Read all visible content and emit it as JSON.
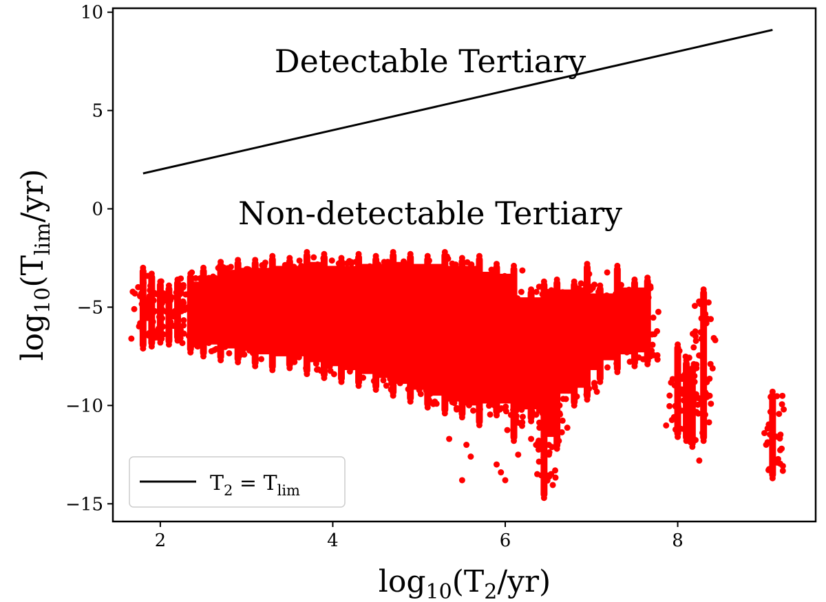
{
  "chart_data": {
    "type": "scatter",
    "title": "",
    "xlabel": "log10(T2/yr)",
    "ylabel": "log10(Tlim/yr)",
    "xlim": [
      1.45,
      9.6
    ],
    "ylim": [
      -15.9,
      10.2
    ],
    "x_ticks": [
      2,
      4,
      6,
      8
    ],
    "y_ticks": [
      10,
      5,
      0,
      -5,
      -10,
      -15
    ],
    "x_tick_labels": [
      "2",
      "4",
      "6",
      "8"
    ],
    "y_tick_labels": [
      "10",
      "5",
      "0",
      "−5",
      "−10",
      "−15"
    ],
    "annotations": [
      {
        "text": "Detectable Tertiary",
        "x": 5.1,
        "y": 7.6
      },
      {
        "text": "Non-detectable Tertiary",
        "x": 5.2,
        "y": -0.1
      }
    ],
    "legend": {
      "position": "lower-left",
      "entries": [
        {
          "label": "T2 = Tlim",
          "style": "line",
          "color": "#000000"
        }
      ]
    },
    "colors": {
      "line": "#000000",
      "points": "#ff0000"
    },
    "line_series": {
      "name": "T2 = Tlim",
      "x": [
        1.8,
        9.1
      ],
      "y": [
        1.8,
        9.1
      ]
    },
    "scatter_columns": [
      {
        "x": 1.8,
        "ymin": -7.1,
        "ymax": -3.0
      },
      {
        "x": 1.9,
        "ymin": -7.0,
        "ymax": -3.3
      },
      {
        "x": 2.0,
        "ymin": -6.8,
        "ymax": -3.7
      },
      {
        "x": 2.1,
        "ymin": -6.9,
        "ymax": -3.9
      },
      {
        "x": 2.2,
        "ymin": -6.7,
        "ymax": -3.6
      },
      {
        "x": 2.35,
        "ymin": -7.3,
        "ymax": -3.3
      },
      {
        "x": 2.5,
        "ymin": -7.5,
        "ymax": -3.0
      },
      {
        "x": 2.7,
        "ymin": -7.7,
        "ymax": -2.7
      },
      {
        "x": 2.9,
        "ymin": -7.8,
        "ymax": -2.6
      },
      {
        "x": 3.1,
        "ymin": -8.0,
        "ymax": -2.6
      },
      {
        "x": 3.3,
        "ymin": -8.2,
        "ymax": -2.4
      },
      {
        "x": 3.5,
        "ymin": -8.1,
        "ymax": -2.5
      },
      {
        "x": 3.7,
        "ymin": -8.4,
        "ymax": -2.2
      },
      {
        "x": 3.9,
        "ymin": -8.6,
        "ymax": -2.3
      },
      {
        "x": 4.1,
        "ymin": -8.8,
        "ymax": -2.5
      },
      {
        "x": 4.3,
        "ymin": -9.0,
        "ymax": -2.3
      },
      {
        "x": 4.5,
        "ymin": -9.2,
        "ymax": -2.4
      },
      {
        "x": 4.7,
        "ymin": -9.5,
        "ymax": -2.2
      },
      {
        "x": 4.9,
        "ymin": -9.8,
        "ymax": -2.3
      },
      {
        "x": 5.1,
        "ymin": -10.1,
        "ymax": -2.4
      },
      {
        "x": 5.3,
        "ymin": -10.4,
        "ymax": -2.2
      },
      {
        "x": 5.5,
        "ymin": -10.6,
        "ymax": -2.5
      },
      {
        "x": 5.7,
        "ymin": -11.0,
        "ymax": -2.4
      },
      {
        "x": 5.9,
        "ymin": -10.5,
        "ymax": -2.8
      },
      {
        "x": 6.1,
        "ymin": -11.8,
        "ymax": -2.9
      },
      {
        "x": 6.3,
        "ymin": -10.8,
        "ymax": -4.1
      },
      {
        "x": 6.45,
        "ymin": -14.7,
        "ymax": -3.7
      },
      {
        "x": 6.6,
        "ymin": -12.2,
        "ymax": -3.6
      },
      {
        "x": 6.8,
        "ymin": -10.0,
        "ymax": -3.7
      },
      {
        "x": 6.95,
        "ymin": -9.7,
        "ymax": -2.8
      },
      {
        "x": 7.1,
        "ymin": -8.8,
        "ymax": -3.9
      },
      {
        "x": 7.3,
        "ymin": -8.3,
        "ymax": -2.9
      },
      {
        "x": 7.5,
        "ymin": -8.0,
        "ymax": -3.6
      },
      {
        "x": 7.65,
        "ymin": -7.9,
        "ymax": -3.5
      },
      {
        "x": 8.0,
        "ymin": -11.6,
        "ymax": -6.9
      },
      {
        "x": 8.1,
        "ymin": -11.8,
        "ymax": -7.7
      },
      {
        "x": 8.17,
        "ymin": -12.1,
        "ymax": -8.1
      },
      {
        "x": 8.3,
        "ymin": -11.8,
        "ymax": -4.1
      },
      {
        "x": 9.1,
        "ymin": -13.7,
        "ymax": -9.3
      }
    ],
    "outlier_points": [
      {
        "x": 5.35,
        "y": -11.7
      },
      {
        "x": 5.55,
        "y": -12.0
      },
      {
        "x": 5.6,
        "y": -12.6
      },
      {
        "x": 5.5,
        "y": -13.8
      },
      {
        "x": 5.9,
        "y": -13.0
      },
      {
        "x": 5.95,
        "y": -13.4
      },
      {
        "x": 6.0,
        "y": -13.8
      },
      {
        "x": 8.25,
        "y": -12.8
      },
      {
        "x": 6.15,
        "y": -12.5
      },
      {
        "x": 6.3,
        "y": -11.7
      },
      {
        "x": 6.5,
        "y": -9.9
      }
    ]
  }
}
